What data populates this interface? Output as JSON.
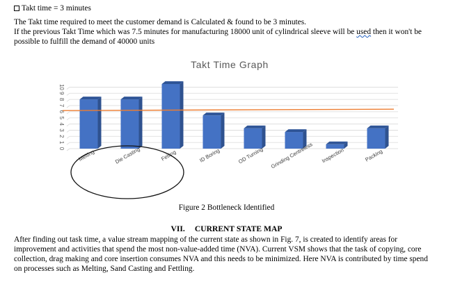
{
  "header": {
    "takt_line": "Takt time = 3 minutes",
    "result_line": "The Takt time required to meet the customer demand is Calculated & found to be 3 minutes.",
    "prev_line_pre": "If the previous Takt Time which was 7.5 minutes for manufacturing 18000 unit of cylindrical sleeve will be ",
    "prev_line_used": "used",
    "prev_line_post": " then it won't be",
    "prev_line_2": "possible to fulfill the demand of 40000 units"
  },
  "chart_data": {
    "type": "bar",
    "title": "Takt Time Graph",
    "categories": [
      "Melting",
      "Die Casting",
      "Fetling",
      "ID Boring",
      "OD Turning",
      "Grinding Centreless",
      "Inspection",
      "Packing"
    ],
    "values": [
      8,
      8,
      10.5,
      5.4,
      3.3,
      2.7,
      0.7,
      3.3
    ],
    "reference_line": 6.3,
    "y_ticks": [
      "0",
      "1",
      "2",
      "3",
      "4",
      "5",
      "6",
      "7",
      "8",
      "9",
      "10"
    ],
    "ylim": [
      0,
      10.5
    ],
    "grid": true,
    "legend": "none",
    "bar_color": "#4472c4",
    "line_color": "#ed7d31",
    "highlight": "ellipse around Melting, Die Casting, Fetling"
  },
  "caption": "Figure 2 Bottleneck Identified",
  "section": {
    "number": "VII.",
    "title": "CURRENT STATE MAP"
  },
  "body": {
    "lines": [
      "After finding out task time, a value stream mapping of the current state as shown in Fig. 7, is created to identify areas for",
      "improvement and activities that spend the most non-value-added time (NVA). Current VSM shows that the task of copying, core",
      "collection, drag making and core insertion consumes NVA and this needs to be minimized. Here NVA is contributed by time spend",
      "on processes such as Melting, Sand Casting and Fettling."
    ]
  }
}
